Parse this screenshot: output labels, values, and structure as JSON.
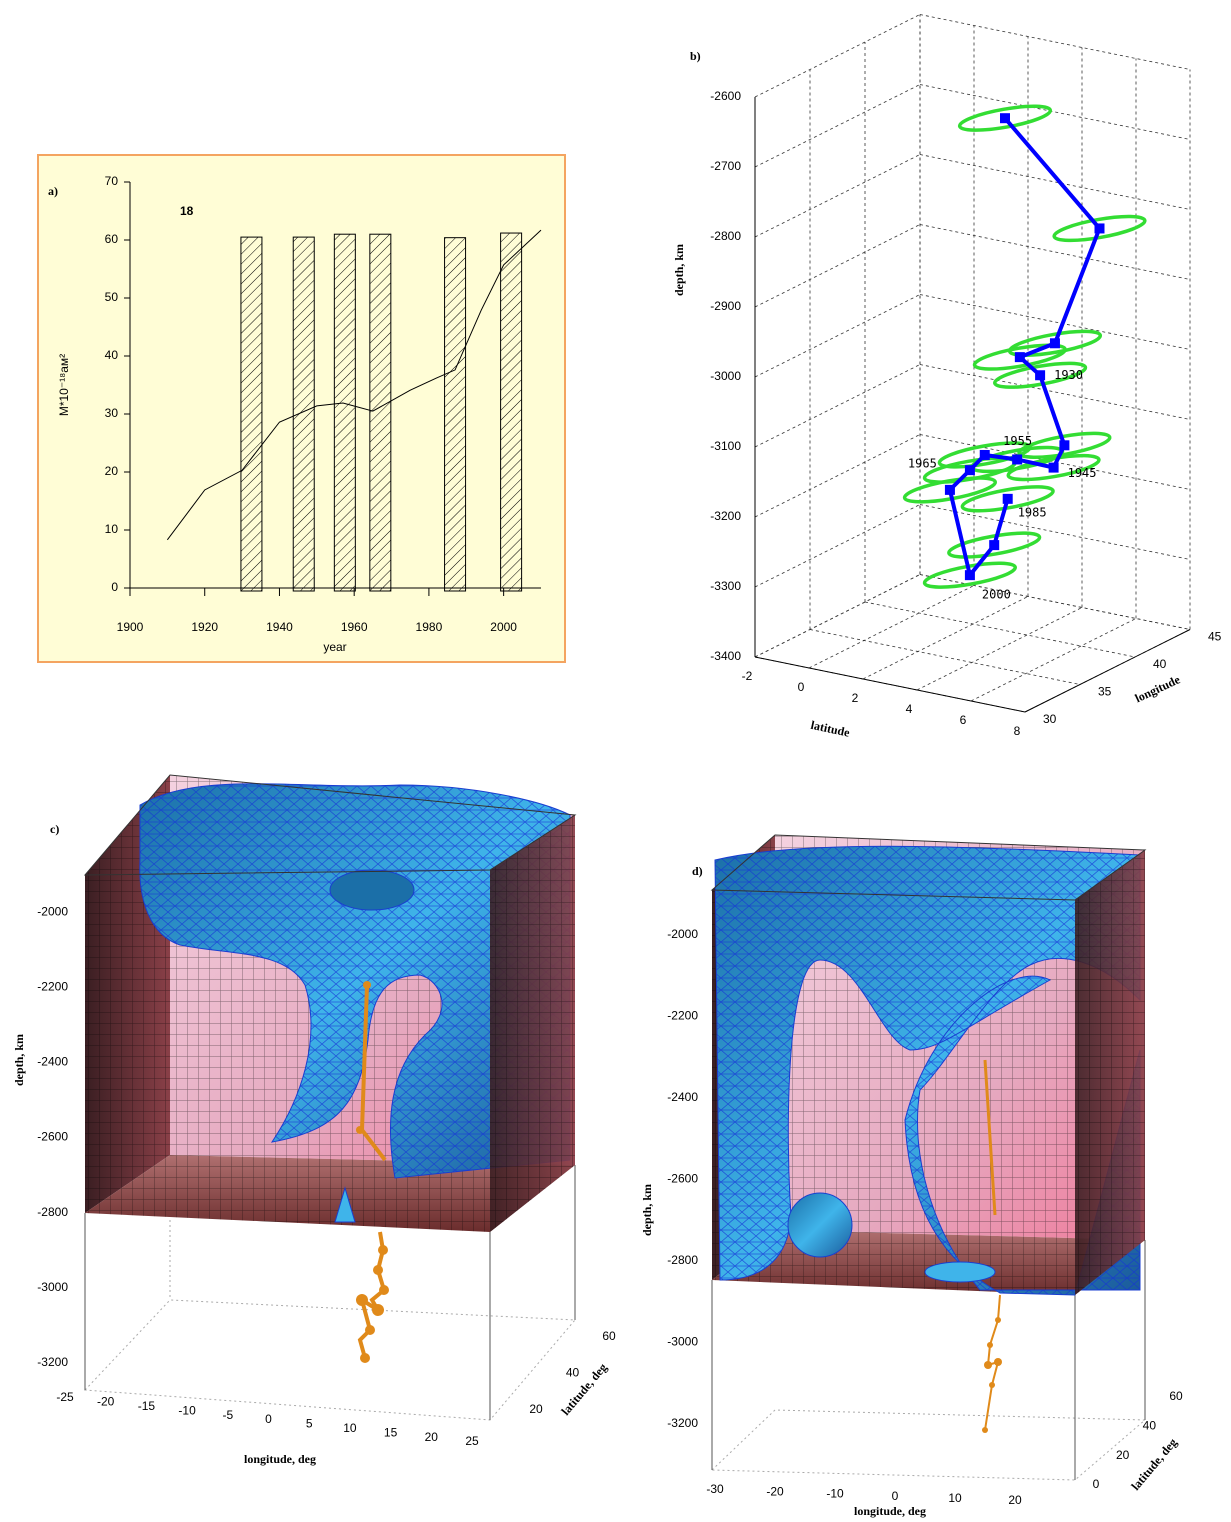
{
  "chart_data": [
    {
      "type": "bar_line",
      "label": "a)",
      "annotation": "18",
      "xlabel": "year",
      "ylabel": "M*10⁻¹⁸aм²",
      "xlim": [
        1900,
        2010
      ],
      "xticks": [
        1900,
        1920,
        1940,
        1960,
        1980,
        2000
      ],
      "ylim": [
        0,
        70
      ],
      "yticks": [
        0,
        10,
        20,
        30,
        40,
        50,
        60,
        70
      ],
      "background": "#fffdd6",
      "border": "#f4a460",
      "series": [
        {
          "type": "bar",
          "x": [
            1932.5,
            1946.5,
            1957.5,
            1967,
            1987,
            2002
          ],
          "values": [
            60.5,
            60.5,
            61,
            61,
            60.4,
            61.2
          ],
          "color": "#000000"
        },
        {
          "type": "line",
          "x": [
            1910,
            1920,
            1930,
            1940,
            1950,
            1957,
            1965,
            1975,
            1982,
            1987,
            1994,
            2000,
            2010
          ],
          "values": [
            8.3,
            16.9,
            20.3,
            28.6,
            31.4,
            31.9,
            30.5,
            34.1,
            36.2,
            37.6,
            47.9,
            55.7,
            61.7
          ],
          "color": "#000000"
        }
      ]
    },
    {
      "type": "line3d",
      "label": "b)",
      "xlabel": "latitude",
      "ylabel": "longitude",
      "zlabel": "depth, km",
      "xlim": [
        -2,
        8
      ],
      "ylim": [
        30,
        45
      ],
      "zlim": [
        -3400,
        -2600
      ],
      "xticks": [
        -2,
        0,
        2,
        4,
        6,
        8
      ],
      "yticks": [
        30,
        35,
        40,
        45
      ],
      "zticks": [
        -3400,
        -3300,
        -3200,
        -3100,
        -3000,
        -2900,
        -2800,
        -2700,
        -2600
      ],
      "grid": true,
      "color": "#0000ff",
      "ellipse_color": "#33dd33",
      "x": [
        4.0,
        7.5,
        5.85,
        4.55,
        5.3,
        6.2,
        5.8,
        4.45,
        3.25,
        2.7,
        1.96,
        2.7,
        3.6,
        4.1
      ],
      "y": [
        38,
        38,
        38,
        38,
        38,
        38,
        38,
        38,
        38,
        38,
        38,
        38,
        38,
        38
      ],
      "z": [
        -2646,
        -2776,
        -2953,
        -2983,
        -3003,
        -3096,
        -3131,
        -3130,
        -3133,
        -3159,
        -3193,
        -3309,
        -3259,
        -3189
      ],
      "point_labels": [
        null,
        null,
        null,
        null,
        "1930",
        null,
        "1945",
        "1955",
        null,
        "1965",
        null,
        "2000",
        null,
        "1985"
      ]
    },
    {
      "type": "isosurface3d",
      "label": "c)",
      "xlabel": "longitude, deg",
      "ylabel": "latitude, deg",
      "zlabel": "depth, km",
      "xlim": [
        -25,
        25
      ],
      "ylim": [
        20,
        60
      ],
      "zlim": [
        -3300,
        -1800
      ],
      "xticks": [
        -25,
        -20,
        -15,
        -10,
        -5,
        0,
        5,
        10,
        15,
        20,
        25
      ],
      "yticks": [
        20,
        40,
        60
      ],
      "zticks": [
        -2000,
        -2200,
        -2400,
        -2600,
        -2800,
        -3000,
        -3200
      ]
    },
    {
      "type": "isosurface3d",
      "label": "d)",
      "xlabel": "longitude, deg",
      "ylabel": "latitude, deg",
      "zlabel": "depth, km",
      "xlim": [
        -30,
        20
      ],
      "ylim": [
        0,
        60
      ],
      "zlim": [
        -3300,
        -1900
      ],
      "xticks": [
        -30,
        -20,
        -10,
        0,
        10,
        20
      ],
      "yticks": [
        0,
        20,
        40,
        60
      ],
      "zticks": [
        -2000,
        -2200,
        -2400,
        -2600,
        -2800,
        -3000,
        -3200
      ]
    }
  ]
}
